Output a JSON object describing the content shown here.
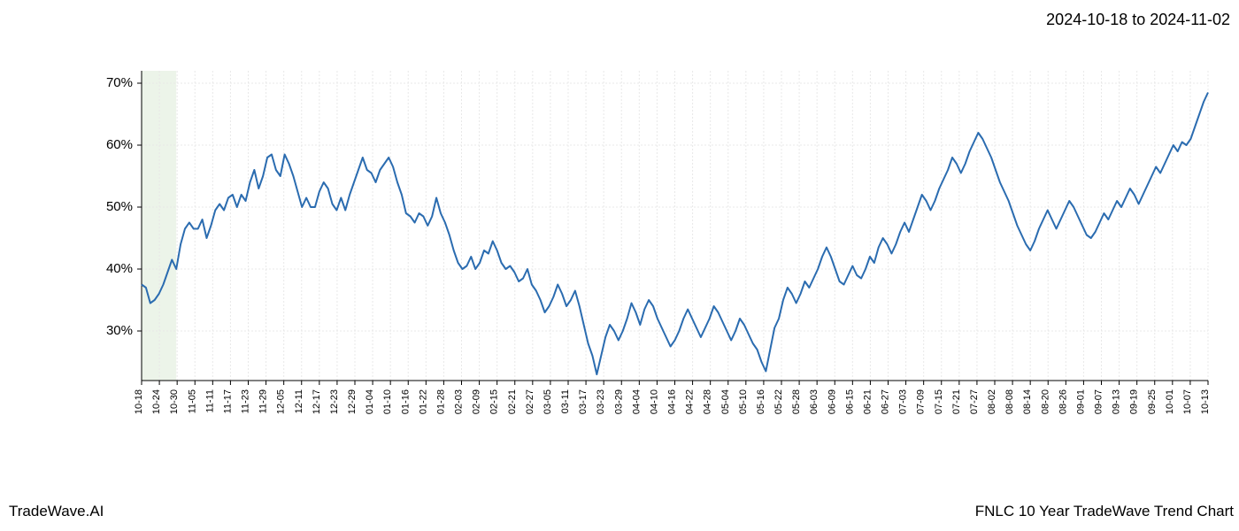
{
  "date_range_text": "2024-10-18 to 2024-11-02",
  "footer_left": "TradeWave.AI",
  "footer_right": "FNLC 10 Year TradeWave Trend Chart",
  "chart": {
    "type": "line",
    "line_color": "#2b6cb0",
    "line_width": 2,
    "background_color": "#ffffff",
    "grid_color": "#e8e8e8",
    "axis_color": "#000000",
    "highlight_band": {
      "color": "#c8e0c0",
      "start_index": 0,
      "end_index": 8
    },
    "y_axis": {
      "min": 22,
      "max": 72,
      "ticks": [
        30,
        40,
        50,
        60,
        70
      ],
      "tick_labels": [
        "30%",
        "40%",
        "50%",
        "60%",
        "70%"
      ],
      "label_fontsize": 15
    },
    "x_axis": {
      "labels": [
        "10-18",
        "10-24",
        "10-30",
        "11-05",
        "11-11",
        "11-17",
        "11-23",
        "11-29",
        "12-05",
        "12-11",
        "12-17",
        "12-23",
        "12-29",
        "01-04",
        "01-10",
        "01-16",
        "01-22",
        "01-28",
        "02-03",
        "02-09",
        "02-15",
        "02-21",
        "02-27",
        "03-05",
        "03-11",
        "03-17",
        "03-23",
        "03-29",
        "04-04",
        "04-10",
        "04-16",
        "04-22",
        "04-28",
        "05-04",
        "05-10",
        "05-16",
        "05-22",
        "05-28",
        "06-03",
        "06-09",
        "06-15",
        "06-21",
        "06-27",
        "07-03",
        "07-09",
        "07-15",
        "07-21",
        "07-27",
        "08-02",
        "08-08",
        "08-14",
        "08-20",
        "08-26",
        "09-01",
        "09-07",
        "09-13",
        "09-19",
        "09-25",
        "10-01",
        "10-07",
        "10-13"
      ],
      "label_fontsize": 11,
      "label_step": 1
    },
    "data": [
      37.5,
      37,
      34.5,
      35,
      36,
      37.5,
      39.5,
      41.5,
      40,
      44,
      46.5,
      47.5,
      46.5,
      46.5,
      48,
      45,
      47,
      49.5,
      50.5,
      49.5,
      51.5,
      52,
      50,
      52,
      51,
      54,
      56,
      53,
      55,
      58,
      58.5,
      56,
      55,
      58.5,
      57,
      55,
      52.5,
      50,
      51.5,
      50,
      50,
      52.5,
      54,
      53,
      50.5,
      49.5,
      51.5,
      49.5,
      52,
      54,
      56,
      58,
      56,
      55.5,
      54,
      56,
      57,
      58,
      56.5,
      54,
      52,
      49,
      48.5,
      47.5,
      49,
      48.5,
      47,
      48.5,
      51.5,
      49,
      47.5,
      45.5,
      43,
      41,
      40,
      40.5,
      42,
      40,
      41,
      43,
      42.5,
      44.5,
      43,
      41,
      40,
      40.5,
      39.5,
      38,
      38.5,
      40,
      37.5,
      36.5,
      35,
      33,
      34,
      35.5,
      37.5,
      36,
      34,
      35,
      36.5,
      34,
      31,
      28,
      26,
      23,
      26,
      29,
      31,
      30,
      28.5,
      30,
      32,
      34.5,
      33,
      31,
      33.5,
      35,
      34,
      32,
      30.5,
      29,
      27.5,
      28.5,
      30,
      32,
      33.5,
      32,
      30.5,
      29,
      30.5,
      32,
      34,
      33,
      31.5,
      30,
      28.5,
      30,
      32,
      31,
      29.5,
      28,
      27,
      25,
      23.5,
      27,
      30.5,
      32,
      35,
      37,
      36,
      34.5,
      36,
      38,
      37,
      38.5,
      40,
      42,
      43.5,
      42,
      40,
      38,
      37.5,
      39,
      40.5,
      39,
      38.5,
      40,
      42,
      41,
      43.5,
      45,
      44,
      42.5,
      44,
      46,
      47.5,
      46,
      48,
      50,
      52,
      51,
      49.5,
      51,
      53,
      54.5,
      56,
      58,
      57,
      55.5,
      57,
      59,
      60.5,
      62,
      61,
      59.5,
      58,
      56,
      54,
      52.5,
      51,
      49,
      47,
      45.5,
      44,
      43,
      44.5,
      46.5,
      48,
      49.5,
      48,
      46.5,
      48,
      49.5,
      51,
      50,
      48.5,
      47,
      45.5,
      45,
      46,
      47.5,
      49,
      48,
      49.5,
      51,
      50,
      51.5,
      53,
      52,
      50.5,
      52,
      53.5,
      55,
      56.5,
      55.5,
      57,
      58.5,
      60,
      59,
      60.5,
      60,
      61,
      63,
      65,
      67,
      68.5
    ]
  }
}
